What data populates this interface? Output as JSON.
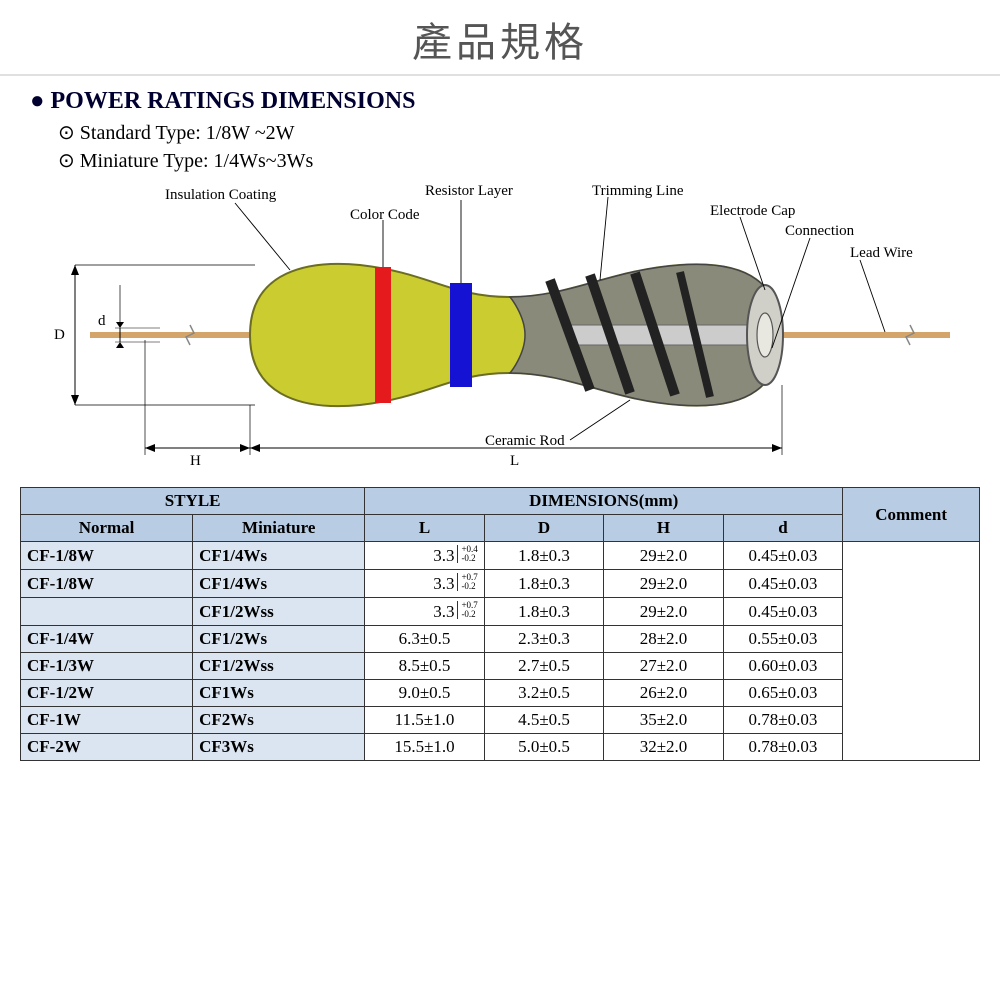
{
  "title": "產品規格",
  "section": {
    "heading": "POWER RATINGS DIMENSIONS",
    "specs": [
      "Standard Type: 1/8W ~2W",
      "Miniature Type: 1/4Ws~3Ws"
    ]
  },
  "diagram": {
    "labels": {
      "insulation": "Insulation Coating",
      "color_code": "Color Code",
      "resistor_layer": "Resistor Layer",
      "trimming_line": "Trimming Line",
      "electrode_cap": "Electrode Cap",
      "connection": "Connection",
      "lead_wire": "Lead Wire",
      "ceramic_rod": "Ceramic Rod",
      "dim_D": "D",
      "dim_d": "d",
      "dim_H": "H",
      "dim_L": "L"
    },
    "body_fill": "#cacc2f",
    "body_stroke": "#6b6d23",
    "core_fill": "#8a8a7a",
    "core_stroke": "#444",
    "band_red": "#e41a1c",
    "band_blue": "#1612d4",
    "lead_color": "#d4a56a",
    "cap_fill": "#d0d0c8",
    "cap_stroke": "#555",
    "leader_color": "#000",
    "break_color": "#888"
  },
  "table": {
    "header_style": "STYLE",
    "header_dims": "DIMENSIONS(mm)",
    "header_comment": "Comment",
    "cols": {
      "normal": "Normal",
      "mini": "Miniature",
      "L": "L",
      "D": "D",
      "H": "H",
      "d": "d"
    },
    "rows": [
      {
        "normal": "CF-1/8W",
        "mini": "CF1/4Ws",
        "L_base": "3.3",
        "L_tol_up": "+0.4",
        "L_tol_dn": "-0.2",
        "D": "1.8±0.3",
        "H": "29±2.0",
        "d": "0.45±0.03"
      },
      {
        "normal": "CF-1/8W",
        "mini": "CF1/4Ws",
        "L_base": "3.3",
        "L_tol_up": "+0.7",
        "L_tol_dn": "-0.2",
        "D": "1.8±0.3",
        "H": "29±2.0",
        "d": "0.45±0.03"
      },
      {
        "normal": "",
        "mini": "CF1/2Wss",
        "L_base": "3.3",
        "L_tol_up": "+0.7",
        "L_tol_dn": "-0.2",
        "D": "1.8±0.3",
        "H": "29±2.0",
        "d": "0.45±0.03"
      },
      {
        "normal": "CF-1/4W",
        "mini": "CF1/2Ws",
        "L": "6.3±0.5",
        "D": "2.3±0.3",
        "H": "28±2.0",
        "d": "0.55±0.03"
      },
      {
        "normal": "CF-1/3W",
        "mini": "CF1/2Wss",
        "L": "8.5±0.5",
        "D": "2.7±0.5",
        "H": "27±2.0",
        "d": "0.60±0.03"
      },
      {
        "normal": "CF-1/2W",
        "mini": "CF1Ws",
        "L": "9.0±0.5",
        "D": "3.2±0.5",
        "H": "26±2.0",
        "d": "0.65±0.03"
      },
      {
        "normal": "CF-1W",
        "mini": "CF2Ws",
        "L": "11.5±1.0",
        "D": "4.5±0.5",
        "H": "35±2.0",
        "d": "0.78±0.03"
      },
      {
        "normal": "CF-2W",
        "mini": "CF3Ws",
        "L": "15.5±1.0",
        "D": "5.0±0.5",
        "H": "32±2.0",
        "d": "0.78±0.03"
      }
    ]
  }
}
